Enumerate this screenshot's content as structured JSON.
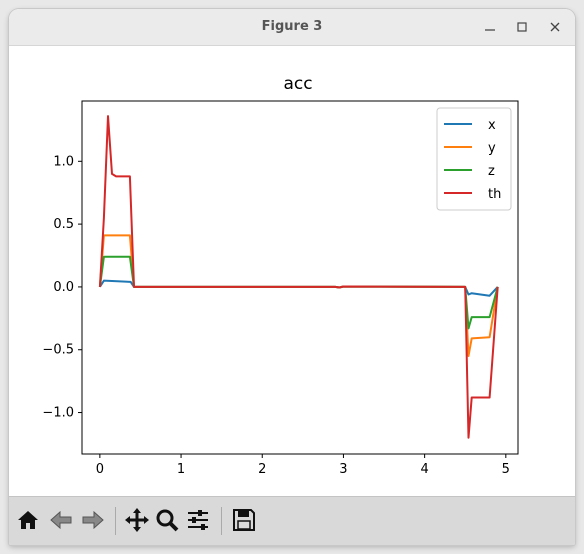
{
  "window": {
    "title": "Figure 3"
  },
  "toolbar": {
    "buttons": [
      {
        "name": "home-button",
        "icon": "home-icon"
      },
      {
        "name": "back-button",
        "icon": "arrow-left-icon"
      },
      {
        "name": "forward-button",
        "icon": "arrow-right-icon"
      },
      {
        "name": "pan-button",
        "icon": "move-icon"
      },
      {
        "name": "zoom-button",
        "icon": "magnifier-icon"
      },
      {
        "name": "configure-subplots-button",
        "icon": "sliders-icon"
      },
      {
        "name": "save-button",
        "icon": "floppy-disk-icon"
      }
    ]
  },
  "chart_data": {
    "type": "line",
    "title": "acc",
    "xlabel": "",
    "ylabel": "",
    "xlim": [
      -0.22,
      5.15
    ],
    "ylim": [
      -1.33,
      1.48
    ],
    "xticks": [
      0,
      1,
      2,
      3,
      4,
      5
    ],
    "xtick_labels": [
      "0",
      "1",
      "2",
      "3",
      "4",
      "5"
    ],
    "yticks": [
      -1.0,
      -0.5,
      0.0,
      0.5,
      1.0
    ],
    "ytick_labels": [
      "−1.0",
      "−0.5",
      "0.0",
      "0.5",
      "1.0"
    ],
    "grid": false,
    "legend_position": "top-right",
    "series": [
      {
        "name": "x",
        "color": "#1f77b4",
        "x": [
          0,
          0.05,
          0.38,
          0.42,
          2.9,
          2.95,
          3.0,
          4.5,
          4.54,
          4.58,
          4.8,
          4.9
        ],
        "y": [
          0,
          0.05,
          0.04,
          0,
          0,
          -0.005,
          0.003,
          0,
          -0.06,
          -0.05,
          -0.07,
          0
        ]
      },
      {
        "name": "y",
        "color": "#ff7f0e",
        "x": [
          0,
          0.05,
          0.37,
          0.42,
          2.9,
          2.95,
          3.0,
          4.5,
          4.54,
          4.58,
          4.8,
          4.9
        ],
        "y": [
          0,
          0.41,
          0.41,
          0,
          0,
          -0.005,
          0.003,
          0,
          -0.55,
          -0.41,
          -0.4,
          0
        ]
      },
      {
        "name": "z",
        "color": "#2ca02c",
        "x": [
          0,
          0.05,
          0.37,
          0.42,
          2.9,
          2.95,
          3.0,
          4.5,
          4.54,
          4.58,
          4.8,
          4.9
        ],
        "y": [
          0,
          0.24,
          0.24,
          0,
          0,
          -0.005,
          0.003,
          0,
          -0.33,
          -0.24,
          -0.24,
          0
        ]
      },
      {
        "name": "th",
        "color": "#d62728",
        "x": [
          0,
          0.05,
          0.1,
          0.15,
          0.2,
          0.37,
          0.42,
          2.9,
          2.95,
          3.0,
          4.5,
          4.54,
          4.58,
          4.8,
          4.9
        ],
        "y": [
          0,
          0.55,
          1.36,
          0.9,
          0.88,
          0.88,
          0,
          0,
          -0.005,
          0.003,
          0,
          -1.2,
          -0.88,
          -0.88,
          0
        ]
      }
    ]
  }
}
